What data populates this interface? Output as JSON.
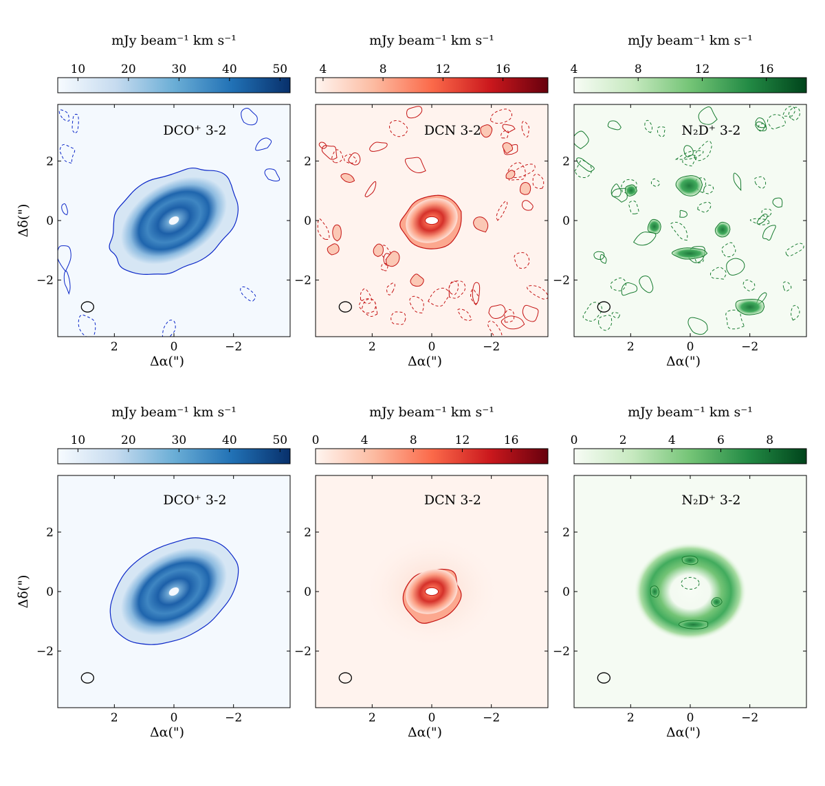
{
  "chart_data": [
    {
      "type": "heatmap",
      "row": 0,
      "col": 0,
      "color_scheme": "Blues",
      "label": "DCO⁺ 3-2",
      "colorbar": {
        "unit": "mJy beam⁻¹ km s⁻¹",
        "range": [
          6,
          52
        ],
        "ticks": [
          "10",
          "20",
          "30",
          "40",
          "50"
        ],
        "tick_values": [
          10,
          20,
          30,
          40,
          50
        ]
      },
      "xlabel": "Δα(\")",
      "ylabel": "Δδ(\")",
      "x_range": [
        3.9,
        -3.9
      ],
      "y_range": [
        -3.9,
        3.9
      ],
      "x_ticks": [
        "2",
        "0",
        "−2"
      ],
      "x_tick_values": [
        2,
        0,
        -2
      ],
      "y_ticks": [
        "2",
        "0",
        "−2"
      ],
      "y_tick_values": [
        2,
        0,
        -2
      ],
      "emission": "inclined disk with ring structure and central hole",
      "beam": {
        "x": 2.9,
        "y": -2.9
      }
    },
    {
      "type": "heatmap",
      "row": 0,
      "col": 1,
      "color_scheme": "Reds",
      "label": "DCN 3-2",
      "colorbar": {
        "unit": "mJy beam⁻¹ km s⁻¹",
        "range": [
          3.5,
          19
        ],
        "ticks": [
          "4",
          "8",
          "12",
          "16"
        ],
        "tick_values": [
          4,
          8,
          12,
          16
        ]
      },
      "xlabel": "Δα(\")",
      "ylabel": "",
      "x_range": [
        3.9,
        -3.9
      ],
      "y_range": [
        -3.9,
        3.9
      ],
      "x_ticks": [
        "2",
        "0",
        "−2"
      ],
      "x_tick_values": [
        2,
        0,
        -2
      ],
      "y_ticks": [
        "2",
        "0",
        "−2"
      ],
      "y_tick_values": [
        2,
        0,
        -2
      ],
      "emission": "compact central ring",
      "beam": {
        "x": 2.9,
        "y": -2.9
      }
    },
    {
      "type": "heatmap",
      "row": 0,
      "col": 2,
      "color_scheme": "Greens",
      "label": "N₂D⁺ 3-2",
      "colorbar": {
        "unit": "mJy beam⁻¹ km s⁻¹",
        "range": [
          4,
          18.5
        ],
        "ticks": [
          "4",
          "8",
          "12",
          "16"
        ],
        "tick_values": [
          4,
          8,
          12,
          16
        ]
      },
      "xlabel": "Δα(\")",
      "ylabel": "",
      "x_range": [
        3.9,
        -3.9
      ],
      "y_range": [
        -3.9,
        3.9
      ],
      "x_ticks": [
        "2",
        "0",
        "−2"
      ],
      "x_tick_values": [
        2,
        0,
        -2
      ],
      "y_ticks": [
        "2",
        "0",
        "−2"
      ],
      "y_tick_values": [
        2,
        0,
        -2
      ],
      "emission": "patchy clumps around center",
      "beam": {
        "x": 2.9,
        "y": -2.9
      }
    },
    {
      "type": "heatmap",
      "row": 1,
      "col": 0,
      "color_scheme": "Blues",
      "label": "DCO⁺ 3-2",
      "colorbar": {
        "unit": "mJy beam⁻¹ km s⁻¹",
        "range": [
          6,
          52
        ],
        "ticks": [
          "10",
          "20",
          "30",
          "40",
          "50"
        ],
        "tick_values": [
          10,
          20,
          30,
          40,
          50
        ]
      },
      "xlabel": "Δα(\")",
      "ylabel": "Δδ(\")",
      "x_range": [
        3.9,
        -3.9
      ],
      "y_range": [
        -3.9,
        3.9
      ],
      "x_ticks": [
        "2",
        "0",
        "−2"
      ],
      "x_tick_values": [
        2,
        0,
        -2
      ],
      "y_ticks": [
        "2",
        "0",
        "−2"
      ],
      "y_tick_values": [
        2,
        0,
        -2
      ],
      "emission": "smooth inclined disk with rings and central hole",
      "beam": {
        "x": 2.9,
        "y": -2.9
      }
    },
    {
      "type": "heatmap",
      "row": 1,
      "col": 1,
      "color_scheme": "Reds",
      "label": "DCN 3-2",
      "colorbar": {
        "unit": "mJy beam⁻¹ km s⁻¹",
        "range": [
          0,
          19
        ],
        "ticks": [
          "0",
          "4",
          "8",
          "12",
          "16"
        ],
        "tick_values": [
          0,
          4,
          8,
          12,
          16
        ]
      },
      "xlabel": "Δα(\")",
      "ylabel": "",
      "x_range": [
        3.9,
        -3.9
      ],
      "y_range": [
        -3.9,
        3.9
      ],
      "x_ticks": [
        "2",
        "0",
        "−2"
      ],
      "x_tick_values": [
        2,
        0,
        -2
      ],
      "y_ticks": [
        "2",
        "0",
        "−2"
      ],
      "y_tick_values": [
        2,
        0,
        -2
      ],
      "emission": "compact central ring",
      "beam": {
        "x": 2.9,
        "y": -2.9
      }
    },
    {
      "type": "heatmap",
      "row": 1,
      "col": 2,
      "color_scheme": "Greens",
      "label": "N₂D⁺ 3-2",
      "colorbar": {
        "unit": "mJy beam⁻¹ km s⁻¹",
        "range": [
          0,
          9.5
        ],
        "ticks": [
          "0",
          "2",
          "4",
          "6",
          "8"
        ],
        "tick_values": [
          0,
          2,
          4,
          6,
          8
        ]
      },
      "xlabel": "Δα(\")",
      "ylabel": "",
      "x_range": [
        3.9,
        -3.9
      ],
      "y_range": [
        -3.9,
        3.9
      ],
      "x_ticks": [
        "2",
        "0",
        "−2"
      ],
      "x_tick_values": [
        2,
        0,
        -2
      ],
      "y_ticks": [
        "2",
        "0",
        "−2"
      ],
      "y_tick_values": [
        2,
        0,
        -2
      ],
      "emission": "ring of clumps with central hole",
      "beam": {
        "x": 2.9,
        "y": -2.9
      }
    }
  ]
}
